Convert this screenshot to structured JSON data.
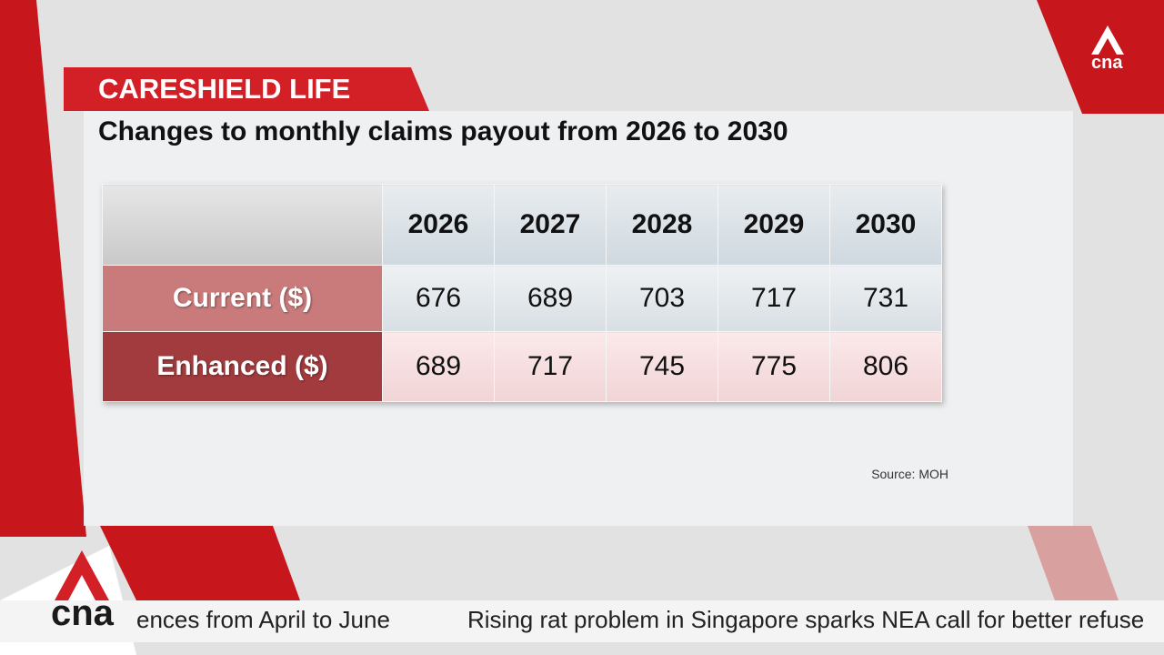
{
  "header": {
    "tag": "CARESHIELD LIFE",
    "title": "Changes to monthly claims payout from 2026 to 2030"
  },
  "table": {
    "columns": [
      "2026",
      "2027",
      "2028",
      "2029",
      "2030"
    ],
    "rows": [
      {
        "label": "Current ($)",
        "values": [
          676,
          689,
          703,
          717,
          731
        ]
      },
      {
        "label": "Enhanced ($)",
        "values": [
          689,
          717,
          745,
          775,
          806
        ]
      }
    ]
  },
  "source": "Source: MOH",
  "logo": "cna",
  "ticker": [
    "ences from April to June",
    "Rising rat problem in Singapore sparks NEA call for better refuse"
  ]
}
